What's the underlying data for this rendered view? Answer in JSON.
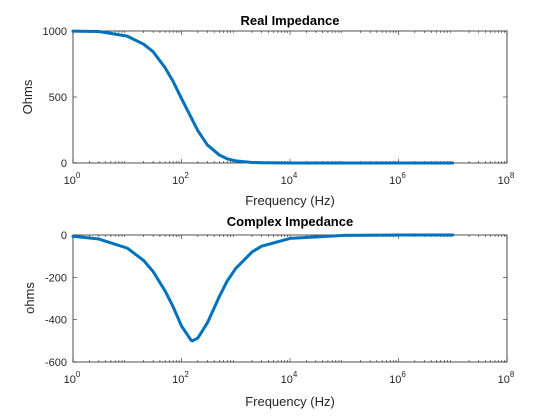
{
  "chart_data": [
    {
      "type": "line",
      "title": "Real Impedance",
      "xlabel": "Frequency (Hz)",
      "ylabel": "Ohms",
      "xscale": "log",
      "xlim": [
        1,
        100000000
      ],
      "ylim": [
        0,
        1000
      ],
      "xticks": [
        {
          "base": "10",
          "exp": "0"
        },
        {
          "base": "10",
          "exp": "2"
        },
        {
          "base": "10",
          "exp": "4"
        },
        {
          "base": "10",
          "exp": "6"
        },
        {
          "base": "10",
          "exp": "8"
        }
      ],
      "yticks": [
        "0",
        "500",
        "1000"
      ],
      "grid": false,
      "color": "#0072BD",
      "series": [
        {
          "x": [
            1,
            3,
            10,
            20,
            30,
            50,
            70,
            100,
            150,
            200,
            300,
            500,
            700,
            1000,
            2000,
            3000,
            10000,
            100000,
            1000000,
            10000000
          ],
          "y": [
            999,
            996,
            961,
            900,
            843,
            721,
            618,
            488,
            346,
            245,
            137,
            60,
            31,
            16,
            4,
            2,
            0.2,
            0,
            0,
            0
          ]
        }
      ]
    },
    {
      "type": "line",
      "title": "Complex Impedance",
      "xlabel": "Frequency (Hz)",
      "ylabel": "ohms",
      "xscale": "log",
      "xlim": [
        1,
        100000000
      ],
      "ylim": [
        -600,
        0
      ],
      "xticks": [
        {
          "base": "10",
          "exp": "0"
        },
        {
          "base": "10",
          "exp": "2"
        },
        {
          "base": "10",
          "exp": "4"
        },
        {
          "base": "10",
          "exp": "6"
        },
        {
          "base": "10",
          "exp": "8"
        }
      ],
      "yticks": [
        "0",
        "-200",
        "-400",
        "-600"
      ],
      "grid": false,
      "color": "#0072BD",
      "series": [
        {
          "x": [
            1,
            3,
            10,
            20,
            30,
            50,
            70,
            100,
            150,
            160,
            200,
            300,
            500,
            700,
            1000,
            2000,
            3000,
            10000,
            100000,
            1000000,
            10000000
          ],
          "y": [
            -6,
            -19,
            -62,
            -120,
            -173,
            -265,
            -339,
            -430,
            -497,
            -500,
            -487,
            -415,
            -290,
            -216,
            -158,
            -80,
            -53,
            -16,
            -2,
            0,
            0
          ]
        }
      ]
    }
  ]
}
